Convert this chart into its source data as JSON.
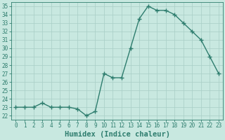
{
  "x": [
    0,
    1,
    2,
    3,
    4,
    5,
    6,
    7,
    8,
    9,
    10,
    11,
    12,
    13,
    14,
    15,
    16,
    17,
    18,
    19,
    20,
    21,
    22,
    23
  ],
  "y": [
    23,
    23,
    23,
    23.5,
    23,
    23,
    23,
    22.8,
    22,
    22.5,
    27,
    26.5,
    26.5,
    30,
    33.5,
    35,
    34.5,
    34.5,
    34,
    33,
    32,
    31,
    29,
    27
  ],
  "line_color": "#2e7d6e",
  "marker": "+",
  "marker_size": 4,
  "marker_linewidth": 1.0,
  "line_width": 1.0,
  "xlabel": "Humidex (Indice chaleur)",
  "xlim": [
    -0.5,
    23.5
  ],
  "ylim": [
    21.5,
    35.5
  ],
  "yticks": [
    22,
    23,
    24,
    25,
    26,
    27,
    28,
    29,
    30,
    31,
    32,
    33,
    34,
    35
  ],
  "xticks": [
    0,
    1,
    2,
    3,
    4,
    5,
    6,
    7,
    8,
    9,
    10,
    11,
    12,
    13,
    14,
    15,
    16,
    17,
    18,
    19,
    20,
    21,
    22,
    23
  ],
  "bg_color": "#c8e8e0",
  "grid_color": "#a8cec6",
  "tick_color": "#2e7d6e",
  "label_color": "#2e7d6e",
  "xlabel_fontsize": 7.5,
  "tick_fontsize": 5.5
}
